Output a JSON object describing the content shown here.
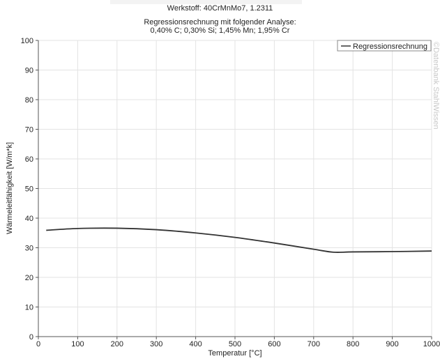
{
  "chart_data": {
    "type": "line",
    "title": "Werkstoff: 40CrMnMo7, 1.2311",
    "subtitle_line1": "Regressionsrechnung mit folgender Analyse:",
    "subtitle_line2": "0,40% C; 0,30% Si; 1,45% Mn; 1,95% Cr",
    "xlabel": "Temperatur [°C]",
    "ylabel": "Wärmeleitfähigkeit [W/m*k]",
    "xlim": [
      0,
      1000
    ],
    "ylim": [
      0,
      100
    ],
    "xticks": [
      0,
      100,
      200,
      300,
      400,
      500,
      600,
      700,
      800,
      900,
      1000
    ],
    "yticks": [
      0,
      10,
      20,
      30,
      40,
      50,
      60,
      70,
      80,
      90,
      100
    ],
    "grid": true,
    "legend_position": "top-right",
    "watermark": "©Datenbank StahlWissen",
    "series": [
      {
        "name": "Regressionsrechnung",
        "color": "#333333",
        "x": [
          20,
          100,
          200,
          300,
          400,
          500,
          600,
          700,
          750,
          800,
          900,
          1000
        ],
        "y": [
          35.9,
          36.5,
          36.6,
          36.1,
          35.0,
          33.5,
          31.6,
          29.5,
          28.5,
          28.6,
          28.7,
          28.9
        ]
      }
    ]
  }
}
